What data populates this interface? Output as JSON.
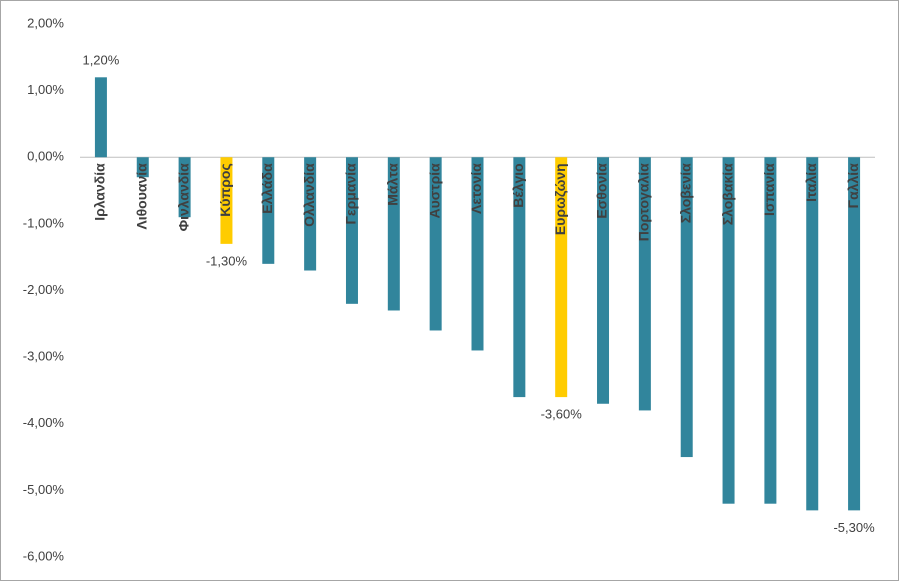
{
  "chart_data": {
    "type": "bar",
    "categories": [
      "Ιρλανδία",
      "Λιθουανία",
      "Φινλανδία",
      "Κύπρος",
      "Ελλάδα",
      "Ολλανδία",
      "Γερμανία",
      "Μάλτα",
      "Αυστρία",
      "Λετονία",
      "Βέλγιο",
      "Ευρωζώνη",
      "Εσθονία",
      "Πορτογαλία",
      "Σλοβενία",
      "Σλοβακία",
      "Ισπανία",
      "Ιταλία",
      "Γαλλία"
    ],
    "values": [
      1.2,
      -0.3,
      -0.9,
      -1.3,
      -1.6,
      -1.7,
      -2.2,
      -2.3,
      -2.6,
      -2.9,
      -3.6,
      -3.6,
      -3.7,
      -3.8,
      -4.5,
      -5.2,
      -5.2,
      -5.3,
      -5.3
    ],
    "value_labels": [
      "1,20%",
      null,
      null,
      "-1,30%",
      null,
      null,
      null,
      null,
      null,
      null,
      null,
      "-3,60%",
      null,
      null,
      null,
      null,
      null,
      null,
      "-5,30%"
    ],
    "colors": [
      "#31859c",
      "#31859c",
      "#31859c",
      "#ffcc00",
      "#31859c",
      "#31859c",
      "#31859c",
      "#31859c",
      "#31859c",
      "#31859c",
      "#31859c",
      "#ffcc00",
      "#31859c",
      "#31859c",
      "#31859c",
      "#31859c",
      "#31859c",
      "#31859c",
      "#31859c"
    ],
    "ylim": [
      -6,
      2
    ],
    "yticks": [
      {
        "value": 2,
        "label": "2,00%"
      },
      {
        "value": 1,
        "label": "1,00%"
      },
      {
        "value": 0,
        "label": "0,00%"
      },
      {
        "value": -1,
        "label": "-1,00%"
      },
      {
        "value": -2,
        "label": "-2,00%"
      },
      {
        "value": -3,
        "label": "-3,00%"
      },
      {
        "value": -4,
        "label": "-4,00%"
      },
      {
        "value": -5,
        "label": "-5,00%"
      },
      {
        "value": -6,
        "label": "-6,00%"
      }
    ],
    "grid": false
  }
}
